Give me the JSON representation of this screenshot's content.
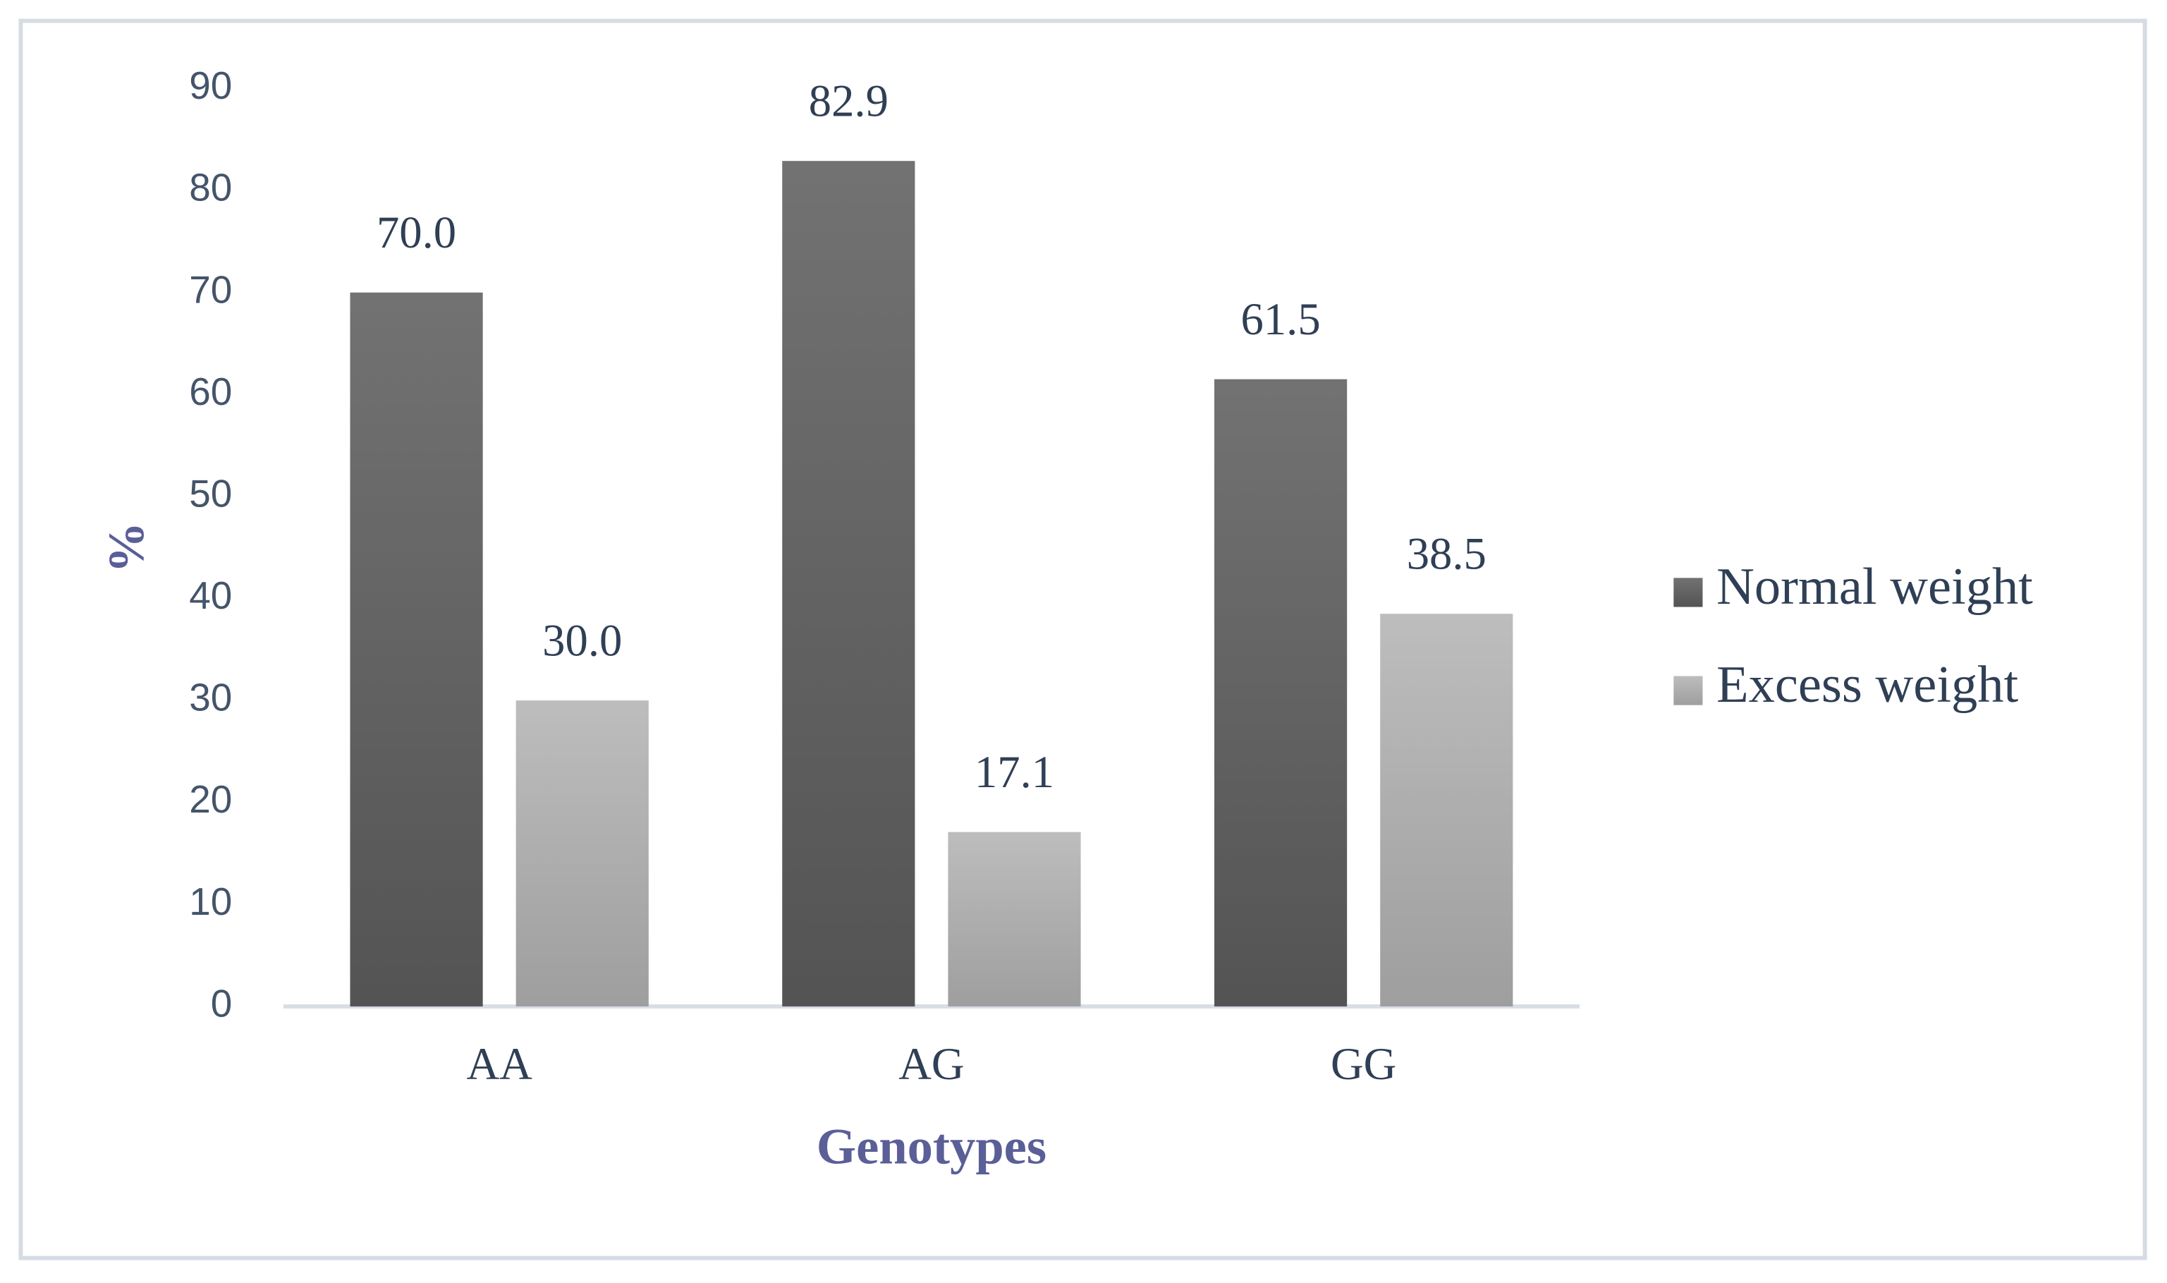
{
  "chart_data": {
    "type": "bar",
    "x_label": "Genotypes",
    "y_label": "%",
    "categories": [
      "AA",
      "AG",
      "GG"
    ],
    "series": [
      {
        "name": "Normal weight",
        "color": "#5f5f5f",
        "values": [
          70.0,
          82.9,
          61.5
        ],
        "value_labels": [
          "70.0",
          "82.9",
          "61.5"
        ]
      },
      {
        "name": "Excess weight",
        "color": "#b4b4b4",
        "values": [
          30.0,
          17.1,
          38.5
        ],
        "value_labels": [
          "30.0",
          "17.1",
          "38.5"
        ]
      }
    ],
    "ylim": [
      0,
      90
    ],
    "yticks": [
      0,
      10,
      20,
      30,
      40,
      50,
      60,
      70,
      80,
      90
    ],
    "grid": false,
    "legend": "right"
  }
}
